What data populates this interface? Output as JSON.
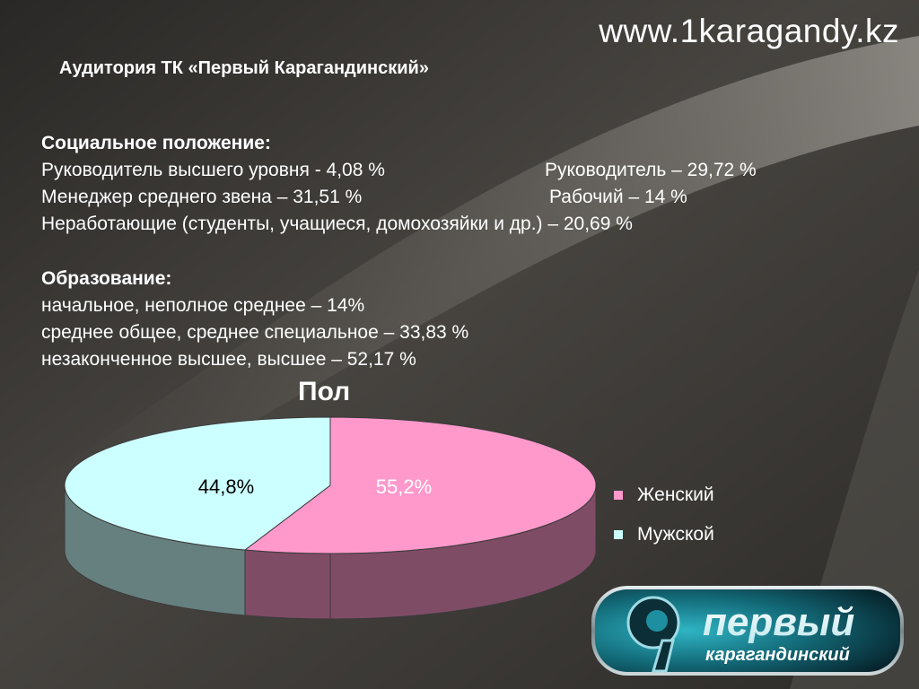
{
  "header": {
    "site_url": "www.1karagandy.kz",
    "title": "Аудитория ТК «Первый Карагандинский»"
  },
  "social": {
    "heading": "Социальное положение:",
    "rows": [
      {
        "left": "Руководитель высшего уровня  - 4,08 %",
        "right": "Руководитель – 29,72 %"
      },
      {
        "left": "Менеджер среднего звена  – 31,51 %",
        "right": "Рабочий – 14 %"
      },
      {
        "left": "Неработающие (студенты, учащиеся, домохозяйки и др.) – 20,69 %",
        "right": ""
      }
    ]
  },
  "education": {
    "heading": "Образование:",
    "items": [
      "начальное, неполное среднее – 14%",
      "среднее общее, среднее специальное – 33,83 %",
      "незаконченное высшее, высшее – 52,17 %"
    ]
  },
  "chart_data": {
    "type": "pie",
    "title": "Пол",
    "slices": [
      {
        "name": "Женский",
        "value": 55.2,
        "label": "55,2%",
        "color": "#ff99cc",
        "side_color": "#7f4c66",
        "label_color": "#ffffff"
      },
      {
        "name": "Мужской",
        "value": 44.8,
        "label": "44,8%",
        "color": "#ccffff",
        "side_color": "#667f7f",
        "label_color": "#000000"
      }
    ],
    "legend_position": "right",
    "style": "3d"
  },
  "logo": {
    "text_top": "первый",
    "text_bottom": "карагандинский",
    "icon": "number-one-logo-icon",
    "colors": {
      "teal": "#1e8fa0",
      "dark": "#0a2a33"
    }
  }
}
